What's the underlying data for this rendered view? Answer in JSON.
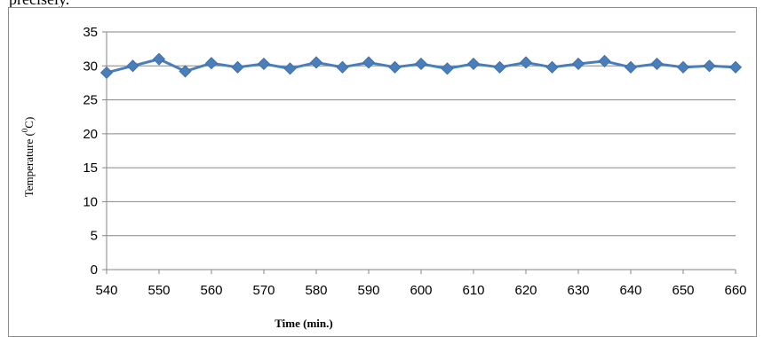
{
  "page_fragment": "precisely.",
  "chart_data": {
    "type": "line",
    "title": "",
    "xlabel": "Time (min.)",
    "ylabel": "Temperature (⁰C)",
    "ylim": [
      0,
      35
    ],
    "xlim": [
      540,
      660
    ],
    "yticks": [
      0,
      5,
      10,
      15,
      20,
      25,
      30,
      35
    ],
    "xticks": [
      540,
      550,
      560,
      570,
      580,
      590,
      600,
      610,
      620,
      630,
      640,
      650,
      660
    ],
    "grid": "horizontal",
    "legend": "none",
    "series_color": "#4A7EBB",
    "series": [
      {
        "x": [
          540,
          545,
          550,
          555,
          560,
          565,
          570,
          575,
          580,
          585,
          590,
          595,
          600,
          605,
          610,
          615,
          620,
          625,
          630,
          635,
          640,
          645,
          650,
          655,
          660
        ],
        "values": [
          29.0,
          30.0,
          31.0,
          29.2,
          30.4,
          29.8,
          30.3,
          29.6,
          30.5,
          29.8,
          30.5,
          29.8,
          30.3,
          29.6,
          30.3,
          29.8,
          30.5,
          29.8,
          30.3,
          30.7,
          29.8,
          30.3,
          29.8,
          30.0,
          29.8
        ]
      }
    ]
  }
}
